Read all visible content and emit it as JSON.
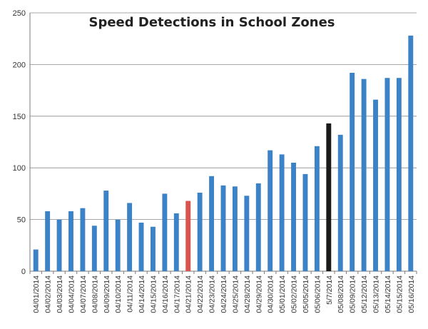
{
  "chart_data": {
    "type": "bar",
    "title": "Speed Detections in School Zones",
    "xlabel": "",
    "ylabel": "",
    "ylim": [
      0,
      250
    ],
    "y_ticks": [
      "0",
      "50",
      "100",
      "150",
      "200",
      "250"
    ],
    "grid": true,
    "legend": "none",
    "default_color": "#3c82c6",
    "categories": [
      "04/01/2014",
      "04/02/2014",
      "04/03/2014",
      "04/04/2014",
      "04/07/2014",
      "04/08/2014",
      "04/09/2014",
      "04/10/2014",
      "04/11/2014",
      "04/14/2014",
      "04/15/2014",
      "04/16/2014",
      "04/17/2014",
      "04/21/2014",
      "04/22/2014",
      "04/23/2014",
      "04/24/2014",
      "04/25/2014",
      "04/28/2014",
      "04/29/2014",
      "04/30/2014",
      "05/01/2014",
      "05/02/2014",
      "05/05/2014",
      "05/06/2014",
      "5/7/2014",
      "05/08/2014",
      "05/09/2014",
      "05/12/2014",
      "05/13/2014",
      "05/14/2014",
      "05/15/2014",
      "05/16/2014"
    ],
    "values": [
      21,
      58,
      50,
      58,
      61,
      44,
      78,
      50,
      66,
      47,
      43,
      75,
      56,
      68,
      76,
      92,
      83,
      82,
      73,
      85,
      117,
      113,
      105,
      94,
      121,
      143,
      132,
      192,
      186,
      166,
      187,
      187,
      228
    ],
    "highlight_colors": {
      "04/21/2014": "#d9534f",
      "5/7/2014": "#1a1a1a"
    }
  }
}
